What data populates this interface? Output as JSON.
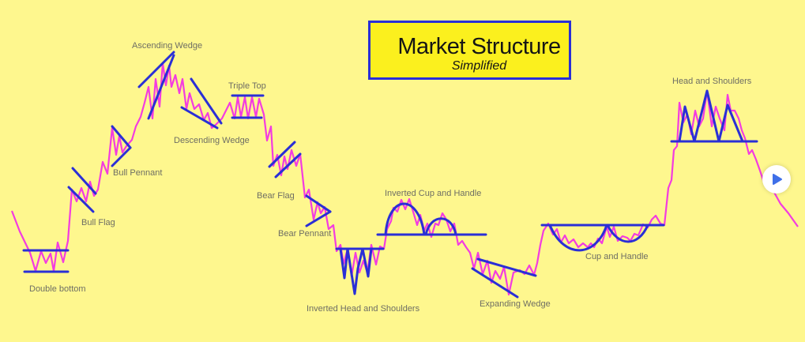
{
  "title": {
    "main": "Market Structure",
    "subtitle": "Simplified"
  },
  "colors": {
    "background": "#fef78e",
    "price_line": "#f33ce0",
    "pattern_lines": "#2a2fd6",
    "title_box": "#fbf01e",
    "label_text": "#6e6e64"
  },
  "patterns": [
    {
      "key": "double_bottom",
      "label": "Double bottom"
    },
    {
      "key": "bull_flag",
      "label": "Bull Flag"
    },
    {
      "key": "bull_pennant",
      "label": "Bull Pennant"
    },
    {
      "key": "ascending_wedge",
      "label": "Ascending Wedge"
    },
    {
      "key": "descending_wedge",
      "label": "Descending Wedge"
    },
    {
      "key": "triple_top",
      "label": "Triple Top"
    },
    {
      "key": "bear_flag",
      "label": "Bear Flag"
    },
    {
      "key": "bear_pennant",
      "label": "Bear Pennant"
    },
    {
      "key": "inverted_head_and_shoulders",
      "label": "Inverted Head and Shoulders"
    },
    {
      "key": "inverted_cup_and_handle",
      "label": "Inverted Cup and Handle"
    },
    {
      "key": "expanding_wedge",
      "label": "Expanding Wedge"
    },
    {
      "key": "cup_and_handle",
      "label": "Cup and Handle"
    },
    {
      "key": "head_and_shoulders",
      "label": "Head and Shoulders"
    }
  ],
  "play_button": {
    "icon": "play-icon"
  }
}
